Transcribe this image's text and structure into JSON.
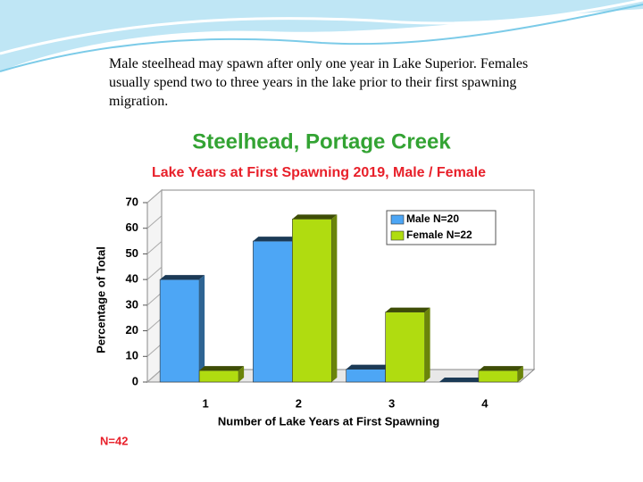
{
  "text": "Male steelhead may spawn after only one year in Lake Superior. Females usually spend two to three years in the lake prior to their first spawning migration.",
  "chart_data": {
    "type": "bar",
    "title": "Steelhead, Portage Creek",
    "subtitle": "Lake Years at First Spawning 2019,  Male / Female",
    "xlabel": "Number of Lake Years at First Spawning",
    "ylabel": "Percentage of Total",
    "annotation": "N=42",
    "categories": [
      "1",
      "2",
      "3",
      "4"
    ],
    "series": [
      {
        "name": "Male N=20",
        "color": "#4da6f5",
        "values": [
          40,
          55,
          5,
          0
        ]
      },
      {
        "name": "Female N=22",
        "color": "#b0dc10",
        "values": [
          4.5,
          63.6,
          27.3,
          4.5
        ]
      }
    ],
    "ylim": [
      0,
      70
    ],
    "yticks": [
      0,
      10,
      20,
      30,
      40,
      50,
      60,
      70
    ],
    "legend": "upper right"
  }
}
